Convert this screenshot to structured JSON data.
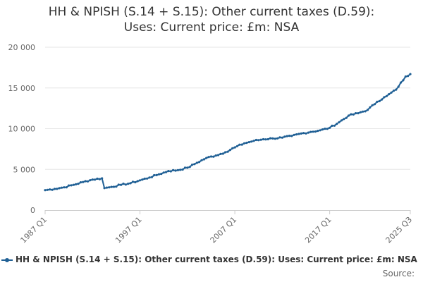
{
  "chart_data": {
    "type": "line",
    "title_line1": "HH & NPISH (S.14 + S.15): Other current taxes (D.59):",
    "title_line2": "Uses: Current price: £m: NSA",
    "xlabel": "",
    "ylabel": "",
    "ylim": [
      0,
      20000
    ],
    "y_ticks": [
      0,
      5000,
      10000,
      15000,
      20000
    ],
    "y_tick_labels": [
      "0",
      "5 000",
      "10 000",
      "15 000",
      "20 000"
    ],
    "x_range": [
      1987.0,
      2025.5
    ],
    "x_ticks": [
      1987.0,
      1997.0,
      2007.0,
      2017.0,
      2025.5
    ],
    "x_tick_labels": [
      "1987 Q1",
      "1997 Q1",
      "2007 Q1",
      "2017 Q1",
      "2025 Q3"
    ],
    "grid": true,
    "legend_position": "bottom",
    "series": [
      {
        "name": "HH & NPISH (S.14 + S.15): Other current taxes (D.59): Uses: Current price: £m: NSA",
        "color": "#206095",
        "anchors": [
          [
            1987.0,
            2450
          ],
          [
            1988.0,
            2600
          ],
          [
            1989.0,
            2800
          ],
          [
            1990.0,
            3100
          ],
          [
            1991.0,
            3450
          ],
          [
            1992.0,
            3750
          ],
          [
            1993.0,
            3900
          ],
          [
            1993.25,
            2700
          ],
          [
            1994.0,
            2850
          ],
          [
            1995.0,
            3100
          ],
          [
            1996.0,
            3300
          ],
          [
            1997.0,
            3650
          ],
          [
            1998.0,
            4000
          ],
          [
            1999.0,
            4400
          ],
          [
            2000.0,
            4800
          ],
          [
            2001.0,
            4900
          ],
          [
            2002.0,
            5200
          ],
          [
            2003.0,
            5800
          ],
          [
            2004.0,
            6400
          ],
          [
            2005.0,
            6700
          ],
          [
            2006.0,
            7100
          ],
          [
            2007.0,
            7700
          ],
          [
            2008.0,
            8200
          ],
          [
            2009.0,
            8500
          ],
          [
            2010.0,
            8700
          ],
          [
            2011.0,
            8800
          ],
          [
            2012.0,
            8900
          ],
          [
            2013.0,
            9100
          ],
          [
            2014.0,
            9400
          ],
          [
            2015.0,
            9600
          ],
          [
            2016.0,
            9800
          ],
          [
            2017.0,
            10100
          ],
          [
            2018.0,
            10800
          ],
          [
            2019.0,
            11600
          ],
          [
            2020.0,
            11900
          ],
          [
            2021.0,
            12300
          ],
          [
            2022.0,
            13300
          ],
          [
            2023.0,
            14000
          ],
          [
            2024.0,
            14800
          ],
          [
            2025.0,
            16400
          ],
          [
            2025.5,
            16700
          ]
        ]
      }
    ]
  },
  "source_label": "Source:"
}
